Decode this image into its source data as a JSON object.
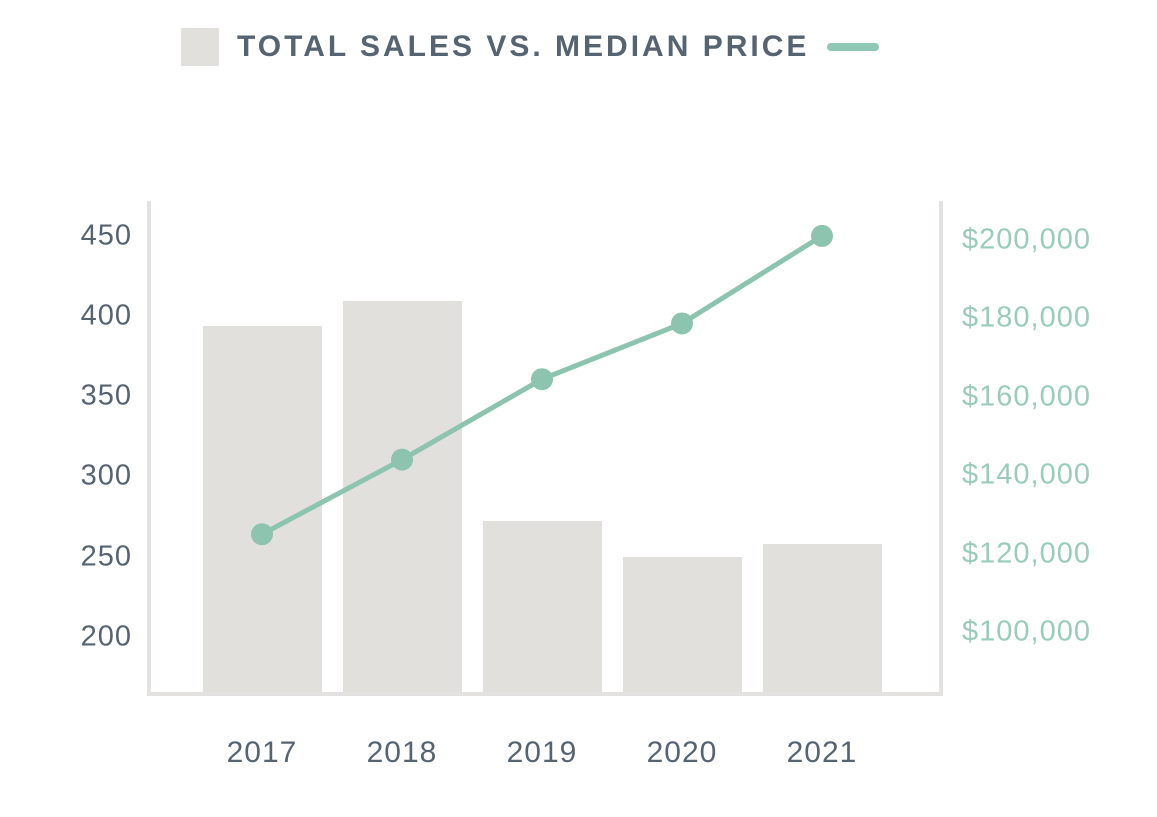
{
  "header": {
    "title": "TOTAL SALES VS. MEDIAN PRICE",
    "bar_swatch_color": "#e1e0dd",
    "line_swatch_color": "#8fc8b4"
  },
  "colors": {
    "bar_fill": "#e1e0dd",
    "line": "#8cc4b0",
    "marker": "#8cc4b0",
    "spine": "#e3e2e0",
    "slate_text": "#566472",
    "teal_text": "#9accbb"
  },
  "chart_data": {
    "type": "bar+line combo",
    "title": "TOTAL SALES VS. MEDIAN PRICE",
    "categories": [
      "2017",
      "2018",
      "2019",
      "2020",
      "2021"
    ],
    "series": [
      {
        "name": "Total Sales",
        "type": "bar",
        "axis": "left",
        "values": [
          394,
          409,
          272,
          250,
          258
        ]
      },
      {
        "name": "Median Price",
        "type": "line",
        "axis": "right",
        "values": [
          125000,
          144000,
          164500,
          178700,
          201000
        ]
      }
    ],
    "left_axis": {
      "ticks": [
        200,
        250,
        300,
        350,
        400,
        450
      ],
      "tick_labels": [
        "200",
        "250",
        "300",
        "350",
        "400",
        "450"
      ],
      "range": [
        165.7,
        471.6
      ]
    },
    "right_axis": {
      "ticks": [
        100000,
        120000,
        140000,
        160000,
        180000,
        200000
      ],
      "tick_labels": [
        "$100,000",
        "$120,000",
        "$140,000",
        "$160,000",
        "$180,000",
        "$200,000"
      ],
      "range": [
        84800,
        209900
      ]
    },
    "grid": false,
    "legend_position": "top"
  }
}
